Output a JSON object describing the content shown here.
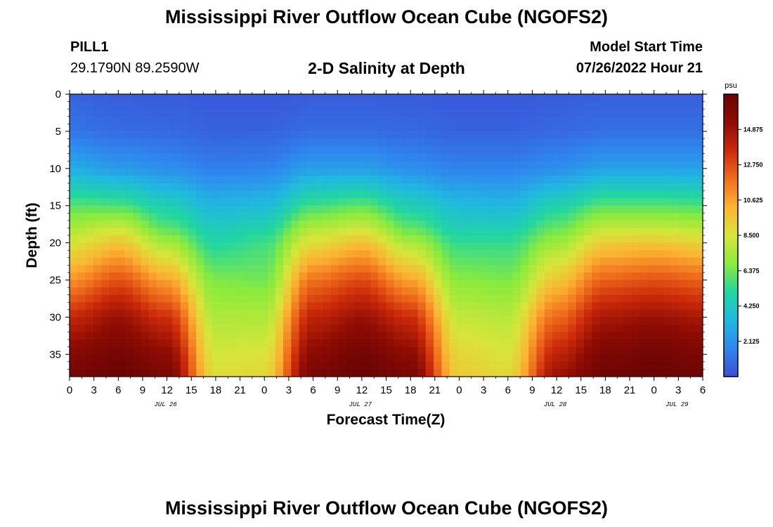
{
  "header": {
    "title": "Mississippi River Outflow Ocean Cube (NGOFS2)",
    "station": "PILL1",
    "coordinates": "29.1790N  89.2590W",
    "subtitle": "2-D Salinity at Depth",
    "model_start_label": "Model Start Time",
    "model_start_value": "07/26/2022 Hour 21"
  },
  "footer": {
    "title": "Mississippi River Outflow Ocean Cube (NGOFS2)"
  },
  "chart_data": {
    "type": "heatmap",
    "title": "2-D Salinity at Depth",
    "xlabel": "Forecast Time(Z)",
    "ylabel": "Depth (ft)",
    "x_tick_labels": [
      "0",
      "3",
      "6",
      "9",
      "12",
      "15",
      "18",
      "21",
      "0",
      "3",
      "6",
      "9",
      "12",
      "15",
      "18",
      "21",
      "0",
      "3",
      "6",
      "9",
      "12",
      "15",
      "18",
      "21",
      "0",
      "3",
      "6"
    ],
    "date_labels": [
      {
        "label": "JUL 26",
        "tick_index": 4
      },
      {
        "label": "JUL 27",
        "tick_index": 12
      },
      {
        "label": "JUL 28",
        "tick_index": 20
      },
      {
        "label": "JUL 29",
        "tick_index": 25
      }
    ],
    "y_ticks": [
      0,
      5,
      10,
      15,
      20,
      25,
      30,
      35
    ],
    "ylim": [
      0,
      38
    ],
    "y_inverted": true,
    "colorbar": {
      "unit": "psu",
      "range": [
        0,
        17
      ],
      "tick_labels": [
        "14.875",
        "12.750",
        "10.625",
        "8.500",
        "6.375",
        "4.250",
        "2.125"
      ],
      "tick_values": [
        14.875,
        12.75,
        10.625,
        8.5,
        6.375,
        4.25,
        2.125
      ],
      "colormap": [
        "#3b4fd6",
        "#2f86ee",
        "#20b8e0",
        "#22d6a0",
        "#8aeb3c",
        "#d8e53a",
        "#fcb433",
        "#f06d1c",
        "#cc2a0a",
        "#8f0c04",
        "#6a0404"
      ]
    },
    "salinity_field_description_hours": [
      0,
      6,
      12,
      18,
      24,
      30,
      36,
      42,
      48,
      54,
      60,
      66,
      72,
      78
    ],
    "salinity_profiles": {
      "depths_ft": [
        0,
        5,
        10,
        15,
        18,
        20,
        25,
        30,
        35,
        38
      ],
      "rows": [
        {
          "hour": 0,
          "values": [
            0.6,
            1.2,
            3.0,
            6.0,
            7.5,
            8.5,
            11.0,
            13.8,
            15.8,
            16.5
          ]
        },
        {
          "hour": 6,
          "values": [
            0.4,
            0.9,
            2.4,
            5.8,
            8.2,
            9.6,
            12.6,
            15.0,
            16.5,
            17.0
          ]
        },
        {
          "hour": 12,
          "values": [
            0.4,
            0.8,
            2.0,
            4.6,
            6.0,
            7.4,
            10.6,
            13.5,
            15.5,
            16.2
          ]
        },
        {
          "hour": 18,
          "values": [
            0.3,
            0.6,
            1.5,
            3.4,
            4.4,
            5.0,
            6.6,
            7.6,
            8.4,
            8.8
          ]
        },
        {
          "hour": 24,
          "values": [
            0.3,
            0.6,
            1.6,
            3.6,
            4.8,
            5.6,
            6.4,
            7.6,
            8.6,
            9.0
          ]
        },
        {
          "hour": 30,
          "values": [
            0.4,
            0.9,
            2.5,
            5.6,
            7.6,
            8.8,
            11.8,
            14.0,
            15.6,
            16.4
          ]
        },
        {
          "hour": 36,
          "values": [
            0.4,
            0.9,
            2.5,
            6.1,
            8.2,
            9.8,
            12.8,
            15.0,
            16.6,
            17.0
          ]
        },
        {
          "hour": 42,
          "values": [
            0.4,
            0.8,
            2.0,
            4.6,
            6.1,
            7.5,
            10.6,
            13.6,
            15.5,
            16.3
          ]
        },
        {
          "hour": 48,
          "values": [
            0.3,
            0.6,
            1.6,
            3.6,
            4.6,
            5.4,
            6.8,
            8.0,
            9.0,
            9.4
          ]
        },
        {
          "hour": 54,
          "values": [
            0.3,
            0.6,
            1.6,
            3.4,
            4.6,
            5.4,
            6.6,
            7.8,
            8.6,
            9.0
          ]
        },
        {
          "hour": 60,
          "values": [
            0.4,
            0.8,
            2.0,
            4.8,
            6.2,
            7.2,
            9.6,
            12.0,
            14.0,
            15.0
          ]
        },
        {
          "hour": 66,
          "values": [
            0.5,
            1.0,
            2.6,
            6.0,
            8.0,
            9.4,
            12.2,
            14.6,
            16.2,
            16.8
          ]
        },
        {
          "hour": 72,
          "values": [
            0.5,
            1.0,
            2.6,
            6.0,
            8.0,
            9.6,
            12.6,
            15.0,
            16.6,
            17.0
          ]
        },
        {
          "hour": 78,
          "values": [
            0.5,
            1.0,
            2.6,
            5.8,
            7.8,
            9.2,
            12.2,
            14.6,
            16.2,
            16.8
          ]
        }
      ]
    }
  }
}
